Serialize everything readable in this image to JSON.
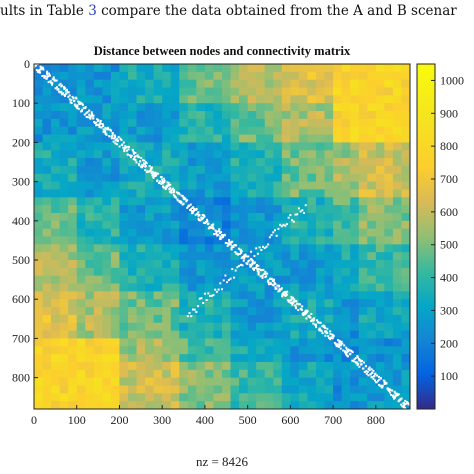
{
  "caption": {
    "prefix": "ults in Table ",
    "ref": "3",
    "suffix": " compare the data obtained from the A and B scenar"
  },
  "chart_data": {
    "type": "heatmap",
    "title": "Distance between nodes and connectivity matrix",
    "xlabel": "nz = 8426",
    "ylabel": "",
    "x_ticks": [
      0,
      100,
      200,
      300,
      400,
      500,
      600,
      700,
      800
    ],
    "y_ticks": [
      0,
      100,
      200,
      300,
      400,
      500,
      600,
      700,
      800
    ],
    "xlim": [
      0,
      880
    ],
    "ylim": [
      0,
      880
    ],
    "colorbar": {
      "range": [
        0,
        1050
      ],
      "ticks": [
        100,
        200,
        300,
        400,
        500,
        600,
        700,
        800,
        900,
        1000
      ],
      "colormap": "parula"
    },
    "sparsity_nonzeros": 8426,
    "overlay_color": "#ffffff"
  }
}
